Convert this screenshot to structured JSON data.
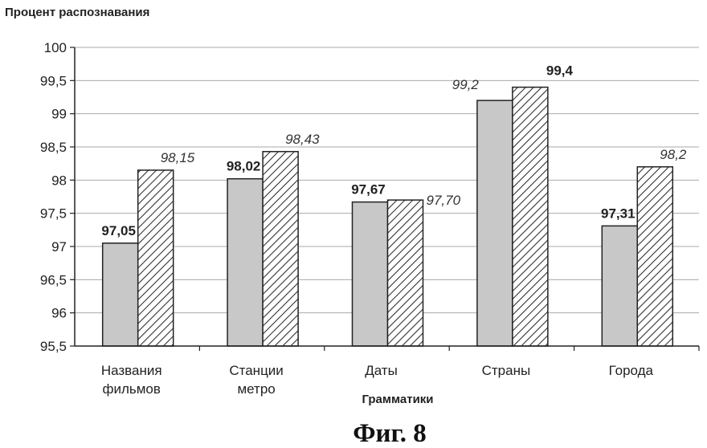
{
  "chart_data": {
    "type": "bar",
    "title": "Процент распознавания",
    "xlabel": "Грамматики",
    "ylabel": "",
    "ylim": [
      95.5,
      100
    ],
    "yticks": [
      "95,5",
      "96",
      "96,5",
      "97",
      "97,5",
      "98",
      "98,5",
      "99",
      "99,5",
      "100"
    ],
    "ytick_values": [
      95.5,
      96,
      96.5,
      97,
      97.5,
      98,
      98.5,
      99,
      99.5,
      100
    ],
    "categories": [
      [
        "Названия",
        "фильмов"
      ],
      [
        "Станции",
        "метро"
      ],
      [
        "Даты"
      ],
      [
        "Страны"
      ],
      [
        "Города"
      ]
    ],
    "series": [
      {
        "values": [
          97.05,
          98.02,
          97.67,
          99.2,
          97.31
        ],
        "labels": [
          "97,05",
          "98,02",
          "97,67",
          "99,2",
          "97,31"
        ],
        "fill": "#c8c8c8",
        "label_style": [
          "bold",
          "bold",
          "bold",
          "italic",
          "bold"
        ]
      },
      {
        "values": [
          98.15,
          98.43,
          97.7,
          99.4,
          98.2
        ],
        "labels": [
          "98,15",
          "98,43",
          "97,70",
          "99,4",
          "98,2"
        ],
        "fill": "hatched",
        "label_style": [
          "italic",
          "italic",
          "italic",
          "bold",
          "italic"
        ]
      }
    ],
    "grid": true,
    "legend": "none"
  },
  "caption": "Фиг. 8",
  "colors": {
    "bar1": "#c8c8c8",
    "hatch_line": "#333333",
    "grid": "#aaaaaa",
    "axis": "#222222"
  }
}
